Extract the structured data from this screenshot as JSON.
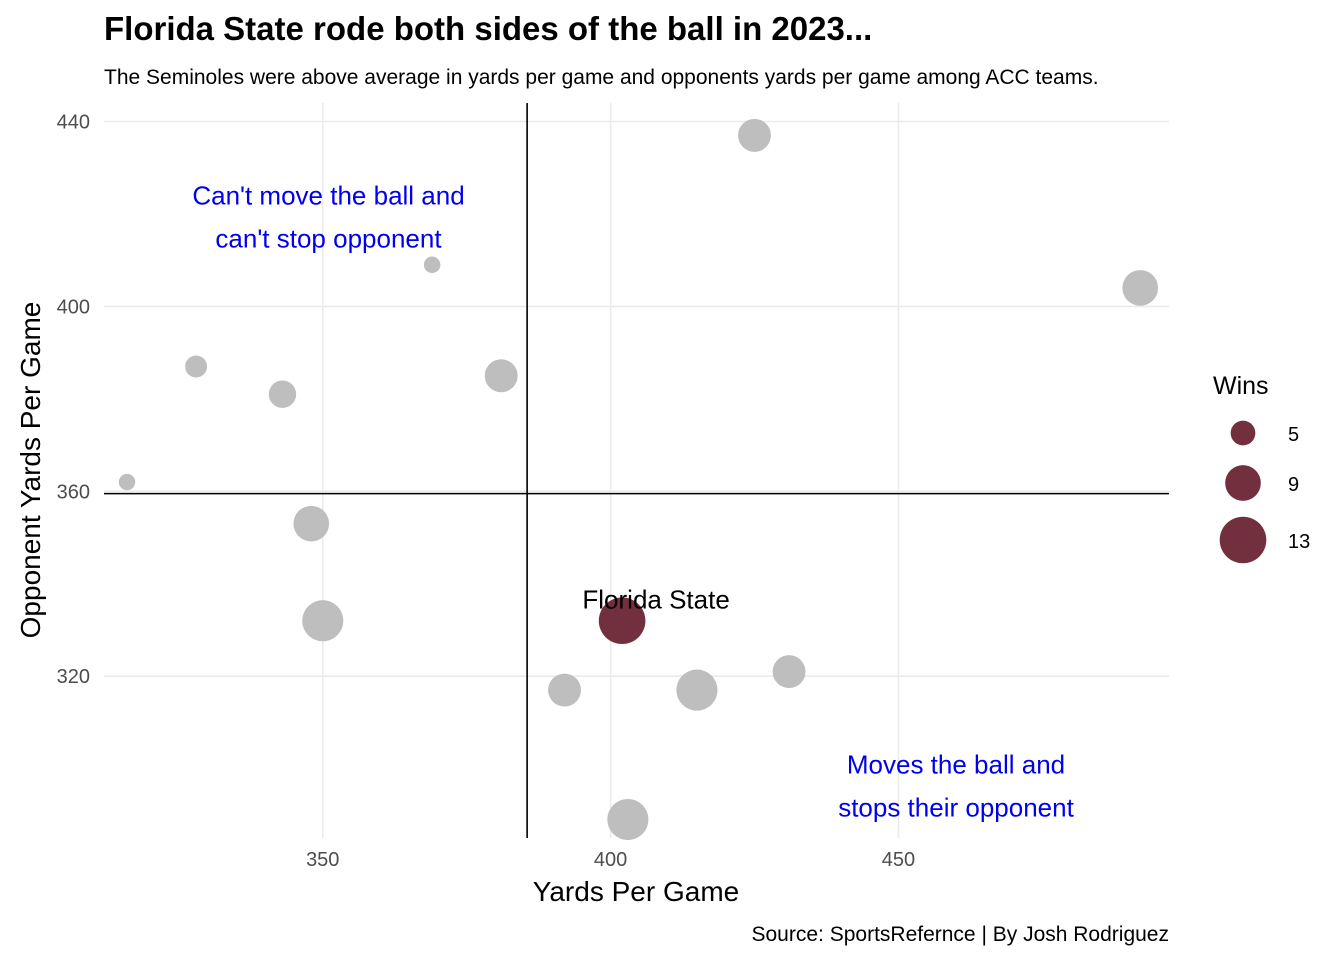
{
  "title": "Florida State rode both sides of the ball in 2023...",
  "subtitle": "The Seminoles were above average in yards per game and opponents yards per game among ACC teams.",
  "caption": "Source: SportsRefernce | By Josh Rodriguez",
  "colors": {
    "highlight": "#722F3E",
    "others": "#BEBEBE",
    "annotation": "#0000EE",
    "grid": "#EBEBEB",
    "reference_line": "#000000"
  },
  "chart_data": {
    "type": "scatter",
    "title": "Florida State rode both sides of the ball in 2023...",
    "subtitle": "The Seminoles were above average in yards per game and opponents yards per game among ACC teams.",
    "xlabel": "Yards Per Game",
    "ylabel": "Opponent Yards Per Game",
    "xlim": [
      312,
      497
    ],
    "ylim": [
      285,
      444
    ],
    "x_ticks": [
      350,
      400,
      450
    ],
    "y_ticks": [
      320,
      360,
      400,
      440
    ],
    "grid": true,
    "reference_lines": {
      "x": 385.5,
      "y": 359.5
    },
    "size_legend": {
      "title": "Wins",
      "values": [
        5,
        9,
        13
      ],
      "placement": "right"
    },
    "points": [
      {
        "x": 425,
        "y": 437,
        "wins": 8,
        "highlight": false
      },
      {
        "x": 492,
        "y": 404,
        "wins": 9,
        "highlight": false
      },
      {
        "x": 369,
        "y": 409,
        "wins": 2,
        "highlight": false
      },
      {
        "x": 328,
        "y": 387,
        "wins": 4,
        "highlight": false
      },
      {
        "x": 343,
        "y": 381,
        "wins": 6,
        "highlight": false
      },
      {
        "x": 381,
        "y": 385,
        "wins": 8,
        "highlight": false
      },
      {
        "x": 316,
        "y": 362,
        "wins": 2,
        "highlight": false
      },
      {
        "x": 348,
        "y": 353,
        "wins": 9,
        "highlight": false
      },
      {
        "x": 350,
        "y": 332,
        "wins": 11,
        "highlight": false
      },
      {
        "x": 402,
        "y": 332,
        "wins": 13,
        "highlight": true,
        "label": "Florida State"
      },
      {
        "x": 392,
        "y": 317,
        "wins": 8,
        "highlight": false
      },
      {
        "x": 415,
        "y": 317,
        "wins": 11,
        "highlight": false
      },
      {
        "x": 431,
        "y": 321,
        "wins": 8,
        "highlight": false
      },
      {
        "x": 403,
        "y": 289,
        "wins": 11,
        "highlight": false
      }
    ],
    "annotations": [
      {
        "lines": [
          "Can't move the ball and",
          "can't stop opponent"
        ],
        "x": 351,
        "y": 422
      },
      {
        "lines": [
          "Moves the ball and",
          "stops their opponent"
        ],
        "x": 460,
        "y": 299
      }
    ]
  }
}
